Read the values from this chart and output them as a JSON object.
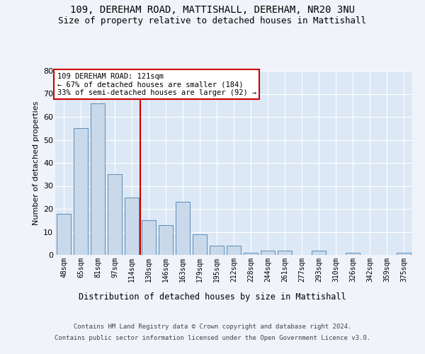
{
  "title1": "109, DEREHAM ROAD, MATTISHALL, DEREHAM, NR20 3NU",
  "title2": "Size of property relative to detached houses in Mattishall",
  "xlabel": "Distribution of detached houses by size in Mattishall",
  "ylabel": "Number of detached properties",
  "categories": [
    "48sqm",
    "65sqm",
    "81sqm",
    "97sqm",
    "114sqm",
    "130sqm",
    "146sqm",
    "163sqm",
    "179sqm",
    "195sqm",
    "212sqm",
    "228sqm",
    "244sqm",
    "261sqm",
    "277sqm",
    "293sqm",
    "310sqm",
    "326sqm",
    "342sqm",
    "359sqm",
    "375sqm"
  ],
  "values": [
    18,
    55,
    66,
    35,
    25,
    15,
    13,
    23,
    9,
    4,
    4,
    1,
    2,
    2,
    0,
    2,
    0,
    1,
    0,
    0,
    1
  ],
  "bar_color": "#c9d9ea",
  "bar_edge_color": "#5b8db8",
  "vline_x": 4.5,
  "vline_color": "#cc0000",
  "annotation_line1": "109 DEREHAM ROAD: 121sqm",
  "annotation_line2": "← 67% of detached houses are smaller (184)",
  "annotation_line3": "33% of semi-detached houses are larger (92) →",
  "annotation_box_color": "#cc0000",
  "ylim": [
    0,
    80
  ],
  "yticks": [
    0,
    10,
    20,
    30,
    40,
    50,
    60,
    70,
    80
  ],
  "background_color": "#dce8f5",
  "fig_background_color": "#f0f4fa",
  "footer_line1": "Contains HM Land Registry data © Crown copyright and database right 2024.",
  "footer_line2": "Contains public sector information licensed under the Open Government Licence v3.0.",
  "grid_color": "#ffffff",
  "title_fontsize": 10,
  "subtitle_fontsize": 9,
  "bar_width": 0.85
}
